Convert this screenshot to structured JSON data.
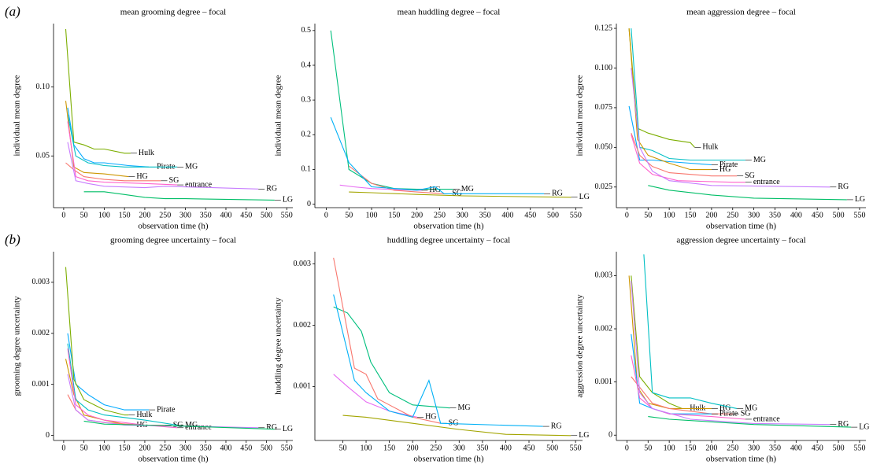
{
  "chart_data": [
    {
      "type": "line",
      "panel_label": "(a)",
      "title": "mean grooming degree – focal",
      "x_label": "observation time (h)",
      "y_label": "individual mean degree",
      "xlim": [
        -25,
        565
      ],
      "xticks": [
        0,
        50,
        100,
        150,
        200,
        250,
        300,
        350,
        400,
        450,
        500,
        550
      ],
      "ylim": [
        0.0125,
        0.146
      ],
      "yticks": [
        0.05,
        {
          "value": 0.1,
          "label": "0.10"
        }
      ],
      "series": [
        {
          "name": "Hulk",
          "color": "#7CAE00",
          "x": [
            5,
            25,
            50,
            75,
            100,
            150,
            165
          ],
          "values": [
            0.142,
            0.06,
            0.058,
            0.055,
            0.055,
            0.052,
            0.052
          ]
        },
        {
          "name": "Pirate",
          "color": "#00A9FF",
          "x": [
            10,
            25,
            50,
            75,
            100,
            160,
            210
          ],
          "values": [
            0.085,
            0.058,
            0.048,
            0.045,
            0.045,
            0.043,
            0.042
          ]
        },
        {
          "name": "MG",
          "color": "#00BFC4",
          "x": [
            10,
            30,
            60,
            100,
            150,
            200,
            280
          ],
          "values": [
            0.08,
            0.05,
            0.045,
            0.043,
            0.042,
            0.042,
            0.042
          ]
        },
        {
          "name": "HG",
          "color": "#CD9600",
          "x": [
            5,
            25,
            50,
            100,
            160
          ],
          "values": [
            0.09,
            0.042,
            0.038,
            0.037,
            0.035
          ]
        },
        {
          "name": "SG",
          "color": "#F8766D",
          "x": [
            5,
            25,
            50,
            100,
            150,
            200,
            240
          ],
          "values": [
            0.045,
            0.04,
            0.035,
            0.033,
            0.032,
            0.032,
            0.032
          ]
        },
        {
          "name": "entrance",
          "color": "#FF61CC",
          "x": [
            10,
            30,
            60,
            100,
            200,
            280
          ],
          "values": [
            0.075,
            0.035,
            0.032,
            0.031,
            0.03,
            0.029
          ]
        },
        {
          "name": "RG",
          "color": "#C77CFF",
          "x": [
            10,
            30,
            60,
            100,
            200,
            250,
            480
          ],
          "values": [
            0.06,
            0.032,
            0.03,
            0.028,
            0.027,
            0.028,
            0.026
          ]
        },
        {
          "name": "LG",
          "color": "#00BE67",
          "x": [
            50,
            100,
            150,
            200,
            250,
            300,
            520
          ],
          "values": [
            0.024,
            0.024,
            0.022,
            0.02,
            0.019,
            0.019,
            0.018
          ]
        }
      ]
    },
    {
      "type": "line",
      "title": "mean huddling degree – focal",
      "x_label": "observation time (h)",
      "y_label": "individual mean degree",
      "xlim": [
        -25,
        565
      ],
      "xticks": [
        0,
        50,
        100,
        150,
        200,
        250,
        300,
        350,
        400,
        450,
        500,
        550
      ],
      "ylim": [
        -0.01,
        0.52
      ],
      "yticks": [
        0,
        0.1,
        0.2,
        0.3,
        0.4,
        0.5
      ],
      "series": [
        {
          "name": "MG",
          "color": "#00BF7D",
          "x": [
            10,
            50,
            100,
            150,
            200,
            280
          ],
          "values": [
            0.5,
            0.1,
            0.06,
            0.045,
            0.043,
            0.043
          ]
        },
        {
          "name": "HG",
          "color": "#E76BF3",
          "x": [
            30,
            60,
            100,
            150,
            210
          ],
          "values": [
            0.055,
            0.05,
            0.045,
            0.042,
            0.04
          ]
        },
        {
          "name": "SG",
          "color": "#F8766D",
          "x": [
            50,
            100,
            150,
            200,
            260
          ],
          "values": [
            0.11,
            0.06,
            0.04,
            0.035,
            0.03
          ]
        },
        {
          "name": "RG",
          "color": "#00B0F6",
          "x": [
            10,
            50,
            100,
            200,
            240,
            260,
            480
          ],
          "values": [
            0.25,
            0.12,
            0.05,
            0.04,
            0.05,
            0.03,
            0.03
          ]
        },
        {
          "name": "LG",
          "color": "#A3A500",
          "x": [
            50,
            100,
            200,
            300,
            540
          ],
          "values": [
            0.035,
            0.033,
            0.028,
            0.024,
            0.02
          ]
        }
      ]
    },
    {
      "type": "line",
      "title": "mean aggression degree – focal",
      "x_label": "observation time (h)",
      "y_label": "individual mean degree",
      "xlim": [
        -25,
        565
      ],
      "xticks": [
        0,
        50,
        100,
        150,
        200,
        250,
        300,
        350,
        400,
        450,
        500,
        550
      ],
      "ylim": [
        0.012,
        0.128
      ],
      "yticks": [
        0.025,
        {
          "value": 0.05,
          "label": "0.050"
        },
        0.075,
        {
          "value": 0.1,
          "label": "0.100"
        },
        0.125
      ],
      "series": [
        {
          "name": "Hulk",
          "color": "#7CAE00",
          "x": [
            5,
            25,
            50,
            100,
            150,
            160
          ],
          "values": [
            0.125,
            0.062,
            0.059,
            0.055,
            0.053,
            0.05
          ]
        },
        {
          "name": "Pirate",
          "color": "#00A9FF",
          "x": [
            5,
            30,
            60,
            100,
            150,
            200
          ],
          "values": [
            0.076,
            0.042,
            0.042,
            0.041,
            0.04,
            0.039
          ]
        },
        {
          "name": "MG",
          "color": "#00BFC4",
          "x": [
            10,
            30,
            60,
            100,
            150,
            280
          ],
          "values": [
            0.125,
            0.05,
            0.048,
            0.043,
            0.042,
            0.042
          ]
        },
        {
          "name": "HG",
          "color": "#CD9600",
          "x": [
            5,
            25,
            50,
            100,
            150,
            200
          ],
          "values": [
            0.125,
            0.055,
            0.045,
            0.04,
            0.036,
            0.036
          ]
        },
        {
          "name": "SG",
          "color": "#F8766D",
          "x": [
            10,
            30,
            60,
            100,
            200,
            260
          ],
          "values": [
            0.059,
            0.045,
            0.038,
            0.034,
            0.032,
            0.032
          ]
        },
        {
          "name": "entrance",
          "color": "#FF61CC",
          "x": [
            10,
            30,
            60,
            120,
            250,
            280
          ],
          "values": [
            0.058,
            0.04,
            0.033,
            0.029,
            0.028,
            0.028
          ]
        },
        {
          "name": "RG",
          "color": "#C77CFF",
          "x": [
            10,
            30,
            60,
            100,
            200,
            480
          ],
          "values": [
            0.1,
            0.05,
            0.035,
            0.029,
            0.026,
            0.025
          ]
        },
        {
          "name": "LG",
          "color": "#00BE67",
          "x": [
            50,
            100,
            200,
            300,
            520
          ],
          "values": [
            0.026,
            0.023,
            0.02,
            0.018,
            0.017
          ]
        }
      ]
    },
    {
      "type": "line",
      "panel_label": "(b)",
      "title": "grooming degree uncertainty – focal",
      "x_label": "observation time (h)",
      "y_label": "grooming degree uncertainty",
      "xlim": [
        -25,
        565
      ],
      "xticks": [
        0,
        50,
        100,
        150,
        200,
        250,
        300,
        350,
        400,
        450,
        500,
        550
      ],
      "ylim": [
        -0.0001,
        0.0036
      ],
      "yticks": [
        0,
        0.001,
        0.002,
        0.003
      ],
      "series": [
        {
          "name": "Pirate",
          "color": "#00A9FF",
          "x": [
            10,
            30,
            60,
            100,
            150,
            210
          ],
          "values": [
            0.002,
            0.001,
            0.0008,
            0.0006,
            0.0005,
            0.0005
          ]
        },
        {
          "name": "Hulk",
          "color": "#7CAE00",
          "x": [
            5,
            25,
            50,
            100,
            150,
            160
          ],
          "values": [
            0.0033,
            0.0011,
            0.0007,
            0.0005,
            0.0004,
            0.0004
          ]
        },
        {
          "name": "HG",
          "color": "#CD9600",
          "x": [
            5,
            25,
            50,
            100,
            160
          ],
          "values": [
            0.0015,
            0.0008,
            0.0004,
            0.0003,
            0.0002
          ]
        },
        {
          "name": "SG",
          "color": "#F8766D",
          "x": [
            10,
            30,
            60,
            100,
            200,
            250
          ],
          "values": [
            0.0008,
            0.0005,
            0.0003,
            0.00025,
            0.0002,
            0.0002
          ]
        },
        {
          "name": "MG",
          "color": "#00BFC4",
          "x": [
            10,
            30,
            60,
            100,
            200,
            280
          ],
          "values": [
            0.0018,
            0.0007,
            0.0005,
            0.0004,
            0.0003,
            0.0002
          ]
        },
        {
          "name": "entrance",
          "color": "#FF61CC",
          "x": [
            10,
            30,
            60,
            100,
            200,
            280
          ],
          "values": [
            0.0017,
            0.0006,
            0.0004,
            0.0003,
            0.0002,
            0.00015
          ]
        },
        {
          "name": "RG",
          "color": "#C77CFF",
          "x": [
            10,
            30,
            60,
            150,
            300,
            480
          ],
          "values": [
            0.0012,
            0.0005,
            0.0003,
            0.0002,
            0.00018,
            0.00015
          ]
        },
        {
          "name": "LG",
          "color": "#00BE67",
          "x": [
            50,
            100,
            200,
            300,
            520
          ],
          "values": [
            0.00028,
            0.00022,
            0.0002,
            0.00018,
            0.00012
          ]
        }
      ]
    },
    {
      "type": "line",
      "title": "huddling degree uncertainty – focal",
      "x_label": "observation time (h)",
      "y_label": "huddling degree uncertainty",
      "xlim": [
        -10,
        565
      ],
      "xticks": [
        50,
        100,
        150,
        200,
        250,
        300,
        350,
        400,
        450,
        500,
        550
      ],
      "ylim": [
        0.00012,
        0.0032
      ],
      "yticks": [
        0.001,
        0.002,
        0.003
      ],
      "series": [
        {
          "name": "MG",
          "color": "#00BF7D",
          "x": [
            30,
            60,
            90,
            110,
            150,
            200,
            280
          ],
          "values": [
            0.0023,
            0.0022,
            0.0019,
            0.0014,
            0.0009,
            0.0007,
            0.00065
          ]
        },
        {
          "name": "HG",
          "color": "#E76BF3",
          "x": [
            30,
            60,
            100,
            150,
            210
          ],
          "values": [
            0.0012,
            0.001,
            0.00075,
            0.0006,
            0.0005
          ]
        },
        {
          "name": "SG",
          "color": "#F8766D",
          "x": [
            30,
            75,
            100,
            125,
            150,
            200,
            260
          ],
          "values": [
            0.0031,
            0.0013,
            0.0012,
            0.0008,
            0.0007,
            0.0005,
            0.0004
          ]
        },
        {
          "name": "RG",
          "color": "#00B0F6",
          "x": [
            30,
            75,
            100,
            150,
            200,
            235,
            260,
            480
          ],
          "values": [
            0.0025,
            0.0011,
            0.0009,
            0.0006,
            0.0005,
            0.0011,
            0.0004,
            0.00035
          ]
        },
        {
          "name": "LG",
          "color": "#A3A500",
          "x": [
            50,
            100,
            200,
            300,
            400,
            540
          ],
          "values": [
            0.00053,
            0.0005,
            0.0004,
            0.0003,
            0.00022,
            0.0002
          ]
        }
      ]
    },
    {
      "type": "line",
      "title": "aggression degree uncertainty – focal",
      "x_label": "observation time (h)",
      "y_label": "aggression degree uncertainty",
      "xlim": [
        -25,
        565
      ],
      "xticks": [
        0,
        50,
        100,
        150,
        200,
        250,
        300,
        350,
        400,
        450,
        500,
        550
      ],
      "ylim": [
        -0.0001,
        0.00345
      ],
      "yticks": [
        0,
        0.001,
        0.002,
        0.003
      ],
      "series": [
        {
          "name": "Hulk",
          "color": "#7CAE00",
          "x": [
            10,
            30,
            60,
            100,
            130
          ],
          "values": [
            0.003,
            0.0011,
            0.0008,
            0.0006,
            0.0005
          ]
        },
        {
          "name": "HG",
          "color": "#CD9600",
          "x": [
            5,
            25,
            50,
            100,
            200
          ],
          "values": [
            0.003,
            0.0009,
            0.0006,
            0.0005,
            0.0005
          ]
        },
        {
          "name": "SG",
          "color": "#F8766D",
          "x": [
            10,
            30,
            60,
            100,
            200,
            250
          ],
          "values": [
            0.0011,
            0.0009,
            0.0006,
            0.0005,
            0.0004,
            0.0004
          ]
        },
        {
          "name": "MG",
          "color": "#00BFC4",
          "x": [
            40,
            60,
            100,
            150,
            200,
            260
          ],
          "values": [
            0.0034,
            0.0008,
            0.0007,
            0.0007,
            0.0006,
            0.0005
          ]
        },
        {
          "name": "Pirate",
          "color": "#00A9FF",
          "x": [
            10,
            30,
            60,
            100,
            200
          ],
          "values": [
            0.0019,
            0.0006,
            0.0005,
            0.0004,
            0.0004
          ]
        },
        {
          "name": "entrance",
          "color": "#FF61CC",
          "x": [
            10,
            30,
            60,
            100,
            200,
            280
          ],
          "values": [
            0.0015,
            0.0007,
            0.0005,
            0.0004,
            0.00035,
            0.0003
          ]
        },
        {
          "name": "RG",
          "color": "#C77CFF",
          "x": [
            10,
            30,
            60,
            150,
            300,
            480
          ],
          "values": [
            0.0029,
            0.0008,
            0.0005,
            0.0003,
            0.00022,
            0.0002
          ]
        },
        {
          "name": "LG",
          "color": "#00BE67",
          "x": [
            50,
            100,
            200,
            300,
            530
          ],
          "values": [
            0.00035,
            0.0003,
            0.00025,
            0.0002,
            0.00015
          ]
        }
      ]
    }
  ]
}
